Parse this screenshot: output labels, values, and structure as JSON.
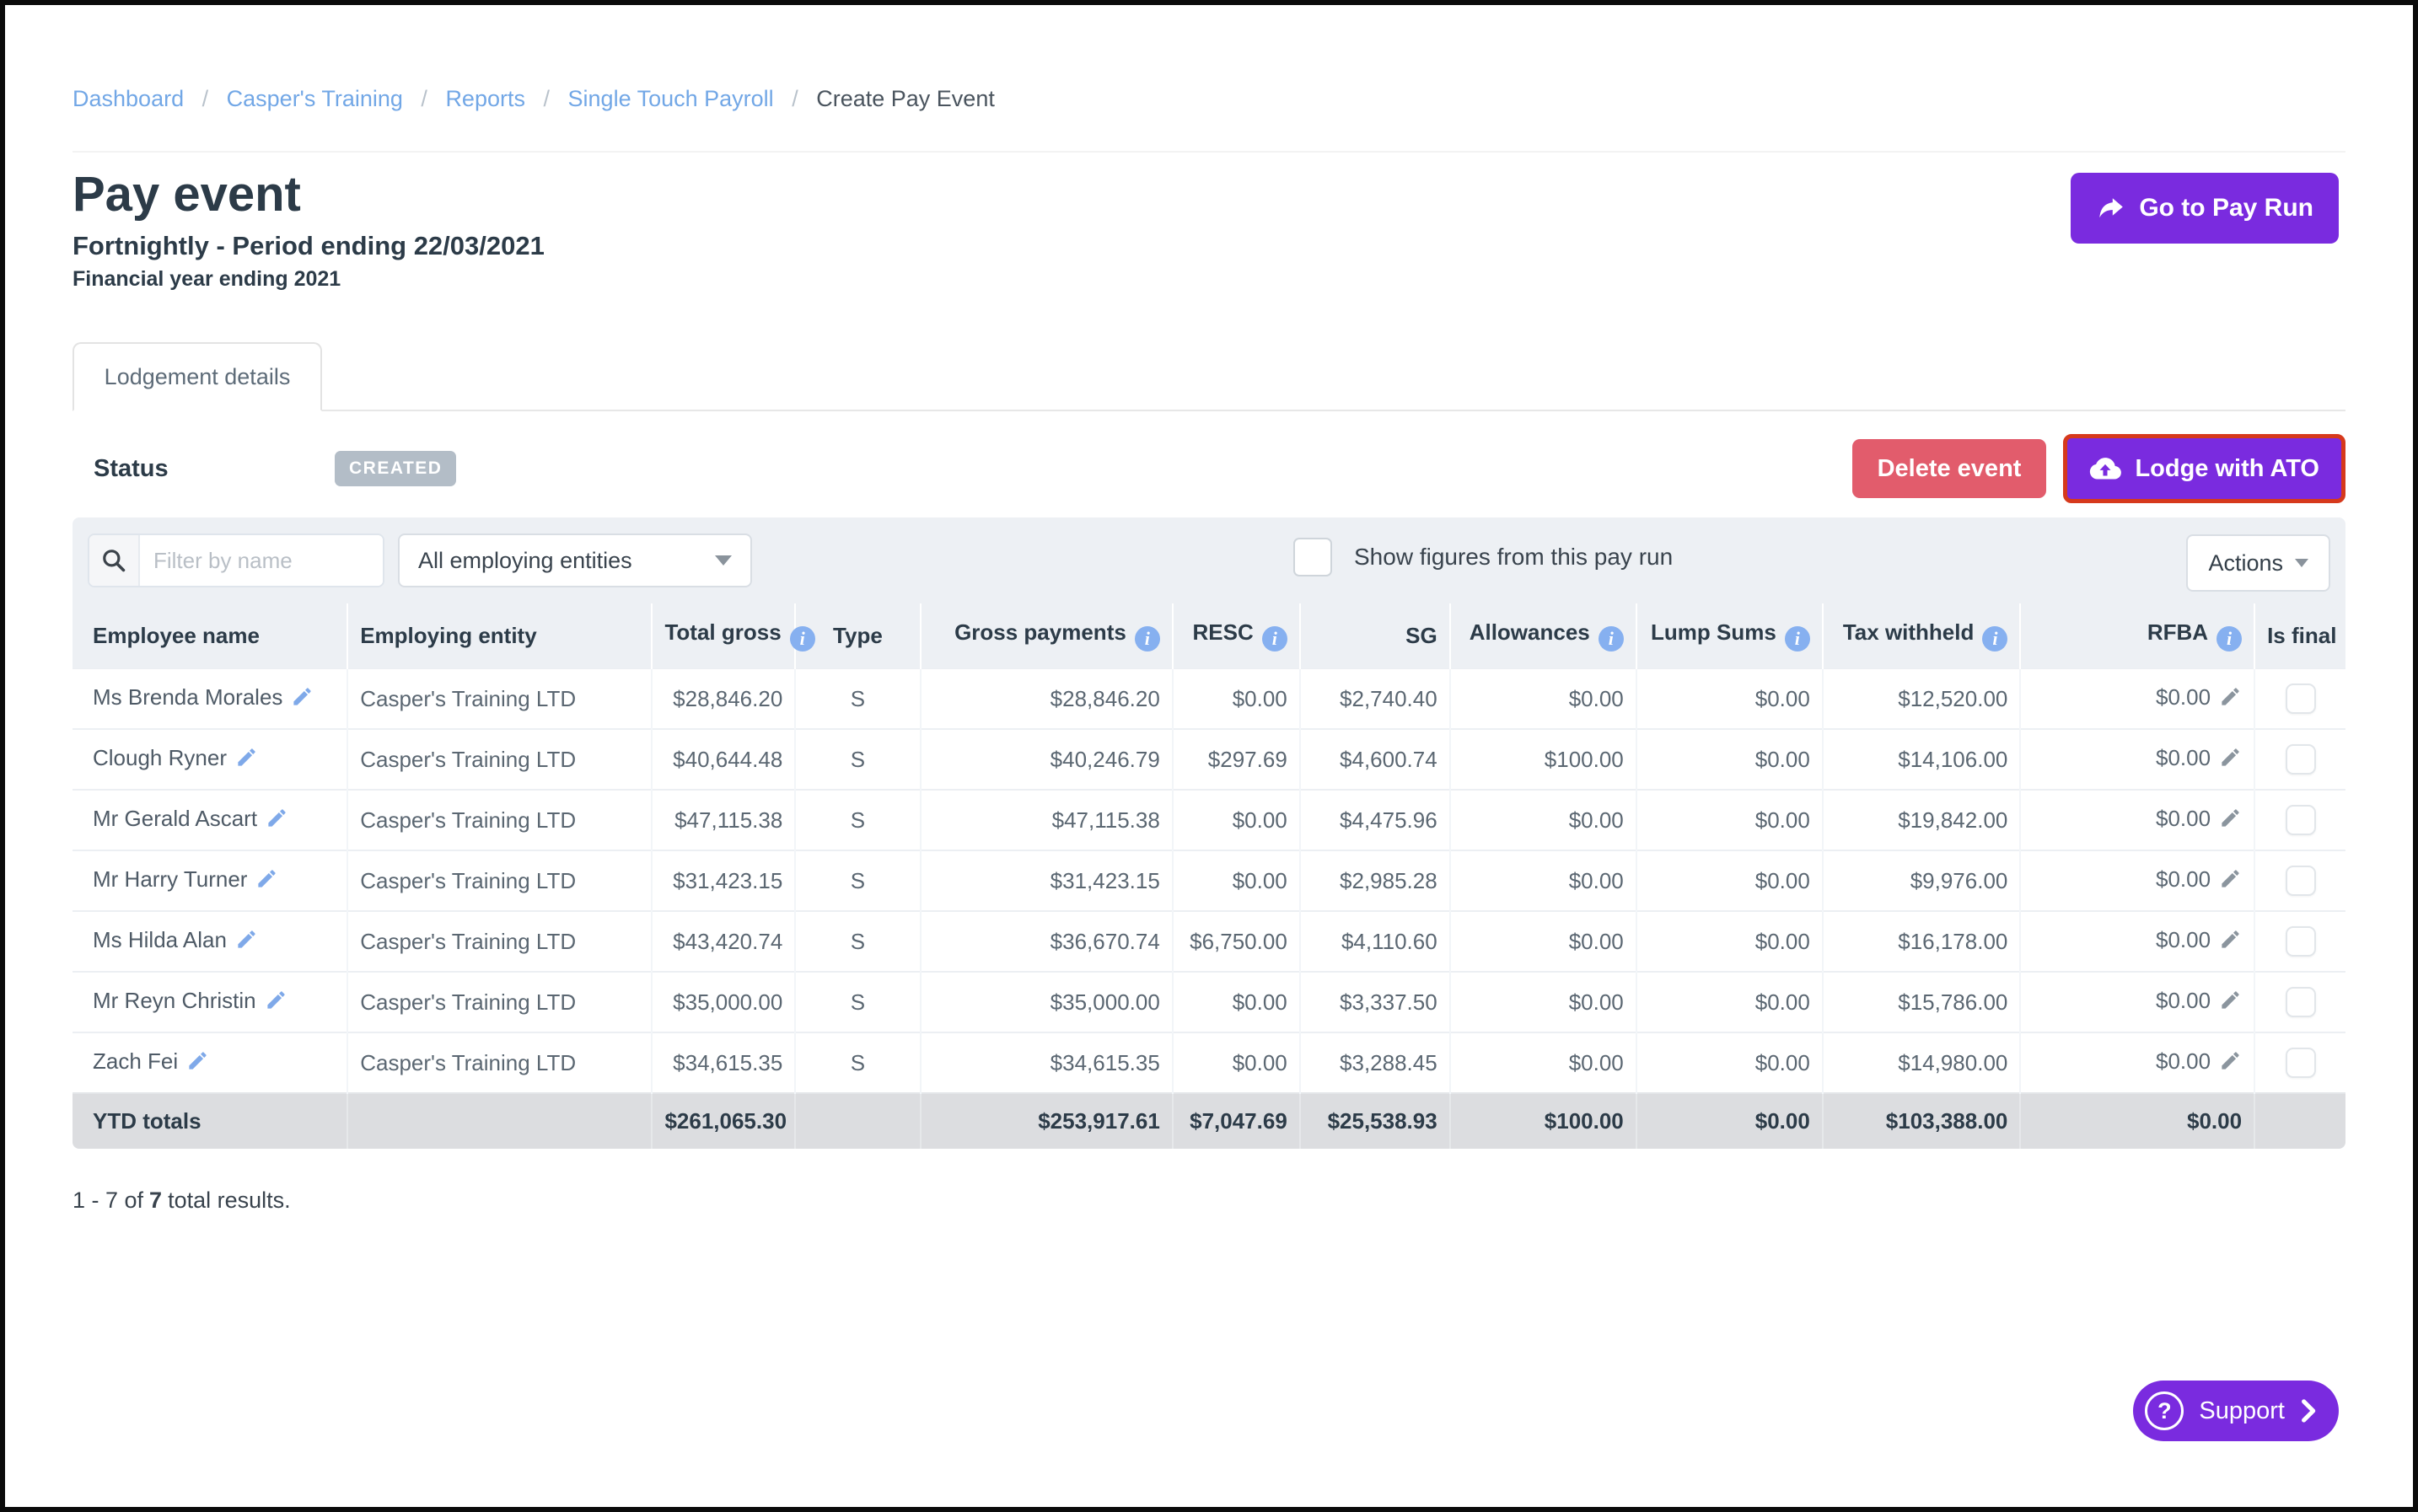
{
  "breadcrumb": {
    "separator": "/",
    "links": [
      "Dashboard",
      "Casper's Training",
      "Reports",
      "Single Touch Payroll"
    ],
    "current": "Create Pay Event"
  },
  "header": {
    "title": "Pay event",
    "subtitle": "Fortnightly - Period ending 22/03/2021",
    "financial_year": "Financial year ending 2021",
    "go_to_pay_run": "Go to Pay Run"
  },
  "tab": {
    "label": "Lodgement details"
  },
  "status": {
    "label": "Status",
    "badge": "CREATED"
  },
  "buttons": {
    "delete_event": "Delete event",
    "lodge_with_ato": "Lodge with ATO",
    "actions": "Actions"
  },
  "filter": {
    "search_placeholder": "Filter by name",
    "entity_dropdown": "All employing entities",
    "show_figures_label": "Show figures from this pay run"
  },
  "icons": {
    "info": "i",
    "question": "?",
    "caret": "▾"
  },
  "table": {
    "columns": [
      {
        "key": "name",
        "label": "Employee name",
        "info": false
      },
      {
        "key": "entity",
        "label": "Employing entity",
        "info": false
      },
      {
        "key": "total_gross",
        "label": "Total gross",
        "info": true
      },
      {
        "key": "type",
        "label": "Type",
        "info": false
      },
      {
        "key": "gross_payments",
        "label": "Gross payments",
        "info": true
      },
      {
        "key": "resc",
        "label": "RESC",
        "info": true
      },
      {
        "key": "sg",
        "label": "SG",
        "info": false
      },
      {
        "key": "allowances",
        "label": "Allowances",
        "info": true
      },
      {
        "key": "lump_sums",
        "label": "Lump Sums",
        "info": true
      },
      {
        "key": "tax_withheld",
        "label": "Tax withheld",
        "info": true
      },
      {
        "key": "rfba",
        "label": "RFBA",
        "info": true
      },
      {
        "key": "is_final",
        "label": "Is final",
        "info": false
      }
    ],
    "rows": [
      {
        "name": "Ms Brenda Morales",
        "entity": "Casper's Training LTD",
        "total_gross": "$28,846.20",
        "type": "S",
        "gross_payments": "$28,846.20",
        "resc": "$0.00",
        "sg": "$2,740.40",
        "allowances": "$0.00",
        "lump_sums": "$0.00",
        "tax_withheld": "$12,520.00",
        "rfba": "$0.00",
        "is_final": false
      },
      {
        "name": "Clough Ryner",
        "entity": "Casper's Training LTD",
        "total_gross": "$40,644.48",
        "type": "S",
        "gross_payments": "$40,246.79",
        "resc": "$297.69",
        "sg": "$4,600.74",
        "allowances": "$100.00",
        "lump_sums": "$0.00",
        "tax_withheld": "$14,106.00",
        "rfba": "$0.00",
        "is_final": false
      },
      {
        "name": "Mr Gerald Ascart",
        "entity": "Casper's Training LTD",
        "total_gross": "$47,115.38",
        "type": "S",
        "gross_payments": "$47,115.38",
        "resc": "$0.00",
        "sg": "$4,475.96",
        "allowances": "$0.00",
        "lump_sums": "$0.00",
        "tax_withheld": "$19,842.00",
        "rfba": "$0.00",
        "is_final": false
      },
      {
        "name": "Mr Harry Turner",
        "entity": "Casper's Training LTD",
        "total_gross": "$31,423.15",
        "type": "S",
        "gross_payments": "$31,423.15",
        "resc": "$0.00",
        "sg": "$2,985.28",
        "allowances": "$0.00",
        "lump_sums": "$0.00",
        "tax_withheld": "$9,976.00",
        "rfba": "$0.00",
        "is_final": false
      },
      {
        "name": "Ms Hilda Alan",
        "entity": "Casper's Training LTD",
        "total_gross": "$43,420.74",
        "type": "S",
        "gross_payments": "$36,670.74",
        "resc": "$6,750.00",
        "sg": "$4,110.60",
        "allowances": "$0.00",
        "lump_sums": "$0.00",
        "tax_withheld": "$16,178.00",
        "rfba": "$0.00",
        "is_final": false
      },
      {
        "name": "Mr Reyn Christin",
        "entity": "Casper's Training LTD",
        "total_gross": "$35,000.00",
        "type": "S",
        "gross_payments": "$35,000.00",
        "resc": "$0.00",
        "sg": "$3,337.50",
        "allowances": "$0.00",
        "lump_sums": "$0.00",
        "tax_withheld": "$15,786.00",
        "rfba": "$0.00",
        "is_final": false
      },
      {
        "name": "Zach Fei",
        "entity": "Casper's Training LTD",
        "total_gross": "$34,615.35",
        "type": "S",
        "gross_payments": "$34,615.35",
        "resc": "$0.00",
        "sg": "$3,288.45",
        "allowances": "$0.00",
        "lump_sums": "$0.00",
        "tax_withheld": "$14,980.00",
        "rfba": "$0.00",
        "is_final": false
      }
    ],
    "totals": {
      "label": "YTD totals",
      "values": {
        "total_gross": "$261,065.30",
        "gross_payments": "$253,917.61",
        "resc": "$7,047.69",
        "sg": "$25,538.93",
        "allowances": "$100.00",
        "lump_sums": "$0.00",
        "tax_withheld": "$103,388.00",
        "rfba": "$0.00"
      }
    }
  },
  "results": {
    "prefix": "1 - 7 of",
    "count": "7",
    "suffix": "total results."
  },
  "support": {
    "label": "Support"
  },
  "colors": {
    "accent_purple": "#7a2bdf",
    "danger_red": "#e25c6c",
    "link_blue": "#72a7e6",
    "badge_gray": "#b3bdc7",
    "highlight_outline": "#d6391c",
    "info_blue": "#86b0f0",
    "panel_gray": "#edf0f4",
    "totals_gray": "#dcdde0"
  }
}
